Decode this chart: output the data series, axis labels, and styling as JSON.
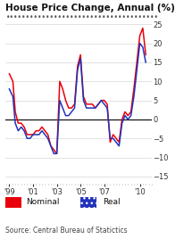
{
  "title": "House Price Change, Annual (%)",
  "source": "Source: Central Bureau of Statictics",
  "legend": [
    "Nominal",
    "Real"
  ],
  "nominal_color": "#e8000a",
  "real_color": "#2233bb",
  "ylim": [
    -17,
    27
  ],
  "yticks": [
    -15,
    -10,
    -5,
    0,
    5,
    10,
    15,
    20,
    25
  ],
  "xtick_labels": [
    "'99",
    "'01",
    "'03",
    "'05",
    "'07",
    "'10"
  ],
  "background_color": "#ffffff",
  "nominal_x": [
    1999.0,
    1999.3,
    1999.5,
    1999.75,
    2000.0,
    2000.25,
    2000.5,
    2000.75,
    2001.0,
    2001.25,
    2001.5,
    2001.75,
    2002.0,
    2002.25,
    2002.5,
    2002.75,
    2003.0,
    2003.25,
    2003.5,
    2003.75,
    2004.0,
    2004.25,
    2004.5,
    2004.75,
    2005.0,
    2005.25,
    2005.5,
    2005.75,
    2006.0,
    2006.25,
    2006.5,
    2006.75,
    2007.0,
    2007.25,
    2007.5,
    2007.75,
    2008.0,
    2008.25,
    2008.5,
    2008.75,
    2009.0,
    2009.25,
    2009.5,
    2009.75,
    2010.0,
    2010.25,
    2010.5
  ],
  "nominal_y": [
    12,
    10,
    2,
    -1,
    -1,
    -2,
    -4,
    -4,
    -4,
    -3,
    -3,
    -2,
    -3,
    -4,
    -7,
    -8,
    -9,
    10,
    8,
    5,
    3,
    3,
    4,
    14,
    17,
    6,
    4,
    4,
    4,
    3,
    4,
    5,
    5,
    4,
    -6,
    -4,
    -5,
    -6,
    0,
    2,
    1,
    2,
    8,
    15,
    22,
    24,
    17
  ],
  "real_x": [
    1999.0,
    1999.3,
    1999.5,
    1999.75,
    2000.0,
    2000.25,
    2000.5,
    2000.75,
    2001.0,
    2001.25,
    2001.5,
    2001.75,
    2002.0,
    2002.25,
    2002.5,
    2002.75,
    2003.0,
    2003.25,
    2003.5,
    2003.75,
    2004.0,
    2004.25,
    2004.5,
    2004.75,
    2005.0,
    2005.25,
    2005.5,
    2005.75,
    2006.0,
    2006.25,
    2006.5,
    2006.75,
    2007.0,
    2007.25,
    2007.5,
    2007.75,
    2008.0,
    2008.25,
    2008.5,
    2008.75,
    2009.0,
    2009.25,
    2009.5,
    2009.75,
    2010.0,
    2010.25,
    2010.5
  ],
  "real_y": [
    8,
    6,
    -1,
    -3,
    -2,
    -3,
    -5,
    -5,
    -4,
    -4,
    -4,
    -3,
    -4,
    -5,
    -7,
    -9,
    -9,
    5,
    3,
    1,
    1,
    2,
    3,
    13,
    16,
    5,
    3,
    3,
    3,
    3,
    4,
    5,
    4,
    3,
    -5,
    -5,
    -6,
    -7,
    -1,
    1,
    0,
    1,
    6,
    13,
    20,
    19,
    15
  ]
}
